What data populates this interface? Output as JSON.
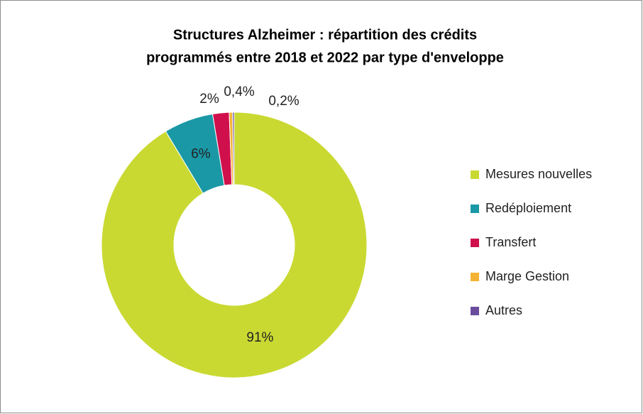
{
  "chart_data": {
    "type": "donut",
    "title": [
      "Structures Alzheimer : répartition des crédits",
      "programmés entre 2018 et 2022 par type d'enveloppe"
    ],
    "categories": [
      "Mesures nouvelles",
      "Redéploiement",
      "Transfert",
      "Marge Gestion",
      "Autres"
    ],
    "values": [
      91,
      6,
      2,
      0.4,
      0.2
    ],
    "value_labels": [
      "91%",
      "6%",
      "2%",
      "0,4%",
      "0,2%"
    ],
    "colors": [
      "#c9d932",
      "#1a98a6",
      "#d0104c",
      "#f5b335",
      "#6a4c9c"
    ],
    "legend": "right"
  }
}
